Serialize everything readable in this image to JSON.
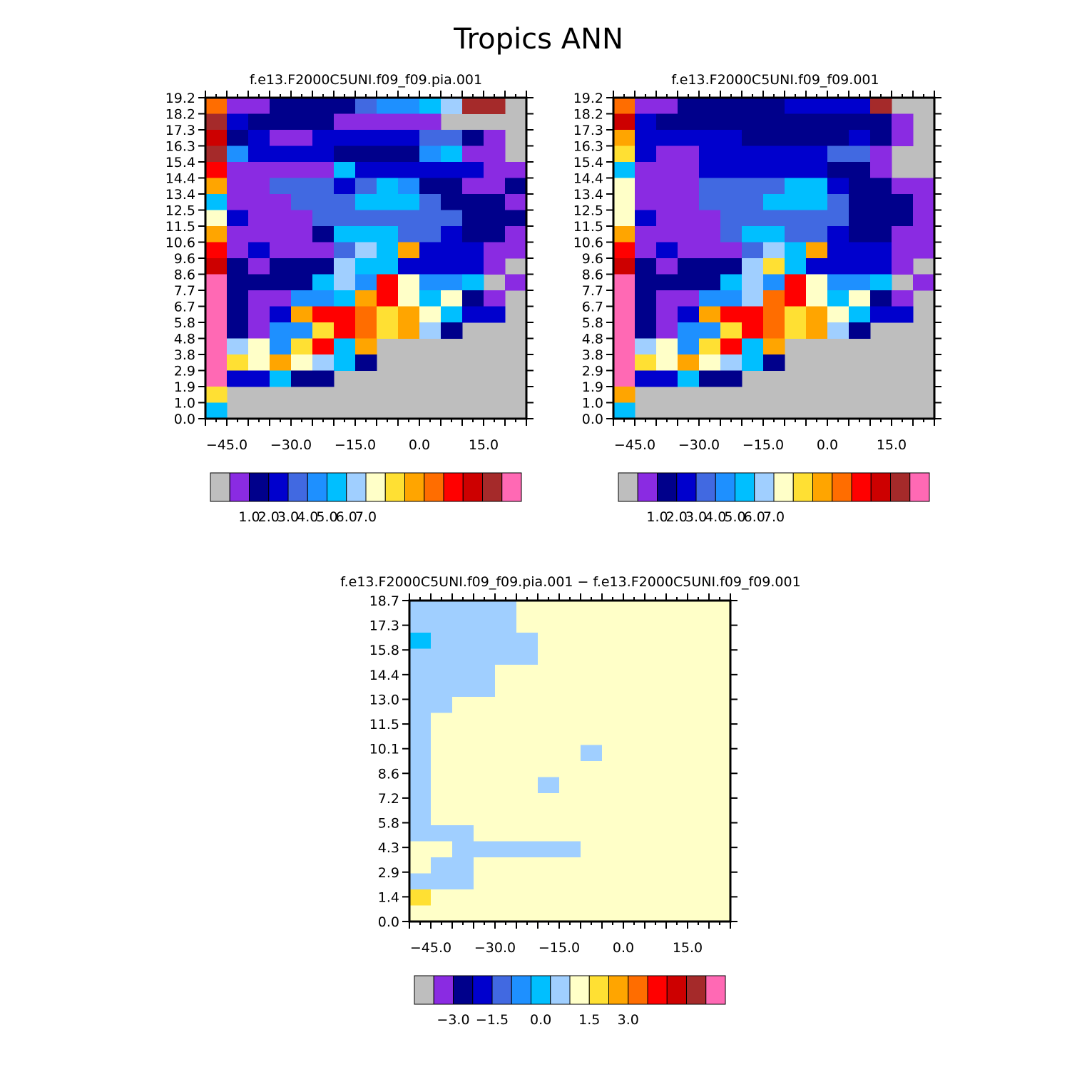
{
  "title": "Tropics ANN",
  "colors": {
    "missing": "#bebebe",
    "palette": [
      "#bebebe",
      "#8a2be2",
      "#00008b",
      "#0000cd",
      "#4169e1",
      "#1e90ff",
      "#00bfff",
      "#a0cfff",
      "#ffffc8",
      "#ffe033",
      "#ffa500",
      "#ff6d00",
      "#ff0000",
      "#cd0000",
      "#a52a2a",
      "#ff69b4"
    ]
  },
  "chart_data": [
    {
      "type": "heatmap",
      "title": "f.e13.F2000C5UNI.f09_f09.pia.001",
      "xlim": [
        -50,
        25
      ],
      "ylim": [
        0,
        19.2
      ],
      "xtick_labels": [
        "−45.0",
        "−30.0",
        "−15.0",
        "0.0",
        "15.0"
      ],
      "xtick_values": [
        -45,
        -30,
        -15,
        0,
        15
      ],
      "ytick_labels": [
        "0.0",
        "1.0",
        "1.9",
        "2.9",
        "3.8",
        "4.8",
        "5.8",
        "6.7",
        "7.7",
        "8.6",
        "9.6",
        "10.6",
        "11.5",
        "12.5",
        "13.4",
        "14.4",
        "15.4",
        "16.3",
        "17.3",
        "18.2",
        "19.2"
      ],
      "colorbar_labels": [
        "1.0",
        "2.0",
        "3.0",
        "4.0",
        "5.0",
        "6.0",
        "7.0"
      ],
      "colorbar_label_positions": [
        2,
        3,
        4,
        5,
        6,
        7,
        8
      ],
      "nx": 15,
      "ny": 20,
      "levels": [
        "0000000000000000",
        "0000000000000000",
        "0000000000000000",
        "0000000000000000",
        "0000000000000000",
        "0000000000000000",
        "0000000000000000",
        "0000000000000000",
        "0000000000000000",
        "0000000000000000",
        "0000000000000000",
        "0000000000000000",
        "0000000000000000",
        "0000000000000000",
        "0000000000000000",
        "0000000000000000",
        "0000000000000000",
        "0000000000000000",
        "0000000000000000",
        "0000000000000000"
      ],
      "rows": [
        "B11222245567EE",
        "E322221111100",
        "D2311333334421",
        "E5333322225611",
        "C11111633333311",
        "A11444346522112",
        "6111444666422211",
        "83111444444422211",
        "A11112666443221",
        "C13111476A333110",
        "D21222766333310",
        "F2222675C8556010",
        "F211556AC868210",
        "F213ACCB9A8633",
        "F21559CB9A72",
        "F7859C6A",
        "F98A8762",
        "F33622",
        "9",
        "6"
      ]
    },
    {
      "type": "heatmap",
      "title": "f.e13.F2000C5UNI.f09_f09.001",
      "xlim": [
        -50,
        25
      ],
      "ylim": [
        0,
        19.2
      ],
      "xtick_labels": [
        "−45.0",
        "−30.0",
        "−15.0",
        "0.0",
        "15.0"
      ],
      "xtick_values": [
        -45,
        -30,
        -15,
        0,
        15
      ],
      "ytick_labels": [
        "0.0",
        "1.0",
        "1.9",
        "2.9",
        "3.8",
        "4.8",
        "5.8",
        "6.7",
        "7.7",
        "8.6",
        "9.6",
        "10.6",
        "11.5",
        "12.5",
        "13.4",
        "14.4",
        "15.4",
        "16.3",
        "17.3",
        "18.2",
        "19.2"
      ],
      "colorbar_labels": [
        "1.0",
        "2.0",
        "3.0",
        "4.0",
        "5.0",
        "6.0",
        "7.0"
      ],
      "colorbar_label_positions": [
        2,
        3,
        4,
        5,
        6,
        7,
        8
      ],
      "nx": 15,
      "ny": 20,
      "rows": [
        "B11222223333E",
        "D3222222222221",
        "A3333322222321",
        "9311333333441",
        "6111333333221",
        "8111444466322112",
        "8111444666422211",
        "8311144444422211",
        "A11114664432211",
        "C13111476A33311",
        "D21222796333310",
        "F2222675C8556010",
        "F211557BC868210",
        "F213ACCB9A8633",
        "F21559CB9A72",
        "F7859C6A",
        "F98A8762",
        "F33622",
        "A",
        "6"
      ]
    },
    {
      "type": "heatmap",
      "title": "f.e13.F2000C5UNI.f09_f09.pia.001 − f.e13.F2000C5UNI.f09_f09.001",
      "xlim": [
        -50,
        25
      ],
      "ylim": [
        0,
        19.2
      ],
      "xtick_labels": [
        "−45.0",
        "−30.0",
        "−15.0",
        "0.0",
        "15.0"
      ],
      "xtick_values": [
        -45,
        -30,
        -15,
        0,
        15
      ],
      "ytick_labels": [
        "0.0",
        "1.4",
        "2.9",
        "4.3",
        "5.8",
        "7.2",
        "8.6",
        "10.1",
        "11.5",
        "13.0",
        "14.4",
        "15.8",
        "17.3",
        "18.7"
      ],
      "colorbar_labels": [
        "−3.0",
        "−1.5",
        "0.0",
        "1.5",
        "3.0"
      ],
      "colorbar_label_positions": [
        2,
        4,
        6.5,
        9,
        11
      ],
      "nx": 15,
      "ny": 20,
      "rows": [
        "77777888888888",
        "77777888888888",
        "67777788888888",
        "77777788888888",
        "77778888888888",
        "77778888888888",
        "77888888888888",
        "78888888888888",
        "78888888888888",
        "78888888788888",
        "78888888888888",
        "7888887888888",
        "788888888888888",
        "78888888888888",
        "7778888888888",
        "8877777788888888",
        "8778888888888888",
        "77788888888888888",
        "9888888888888888",
        "8888888888888888"
      ]
    }
  ]
}
